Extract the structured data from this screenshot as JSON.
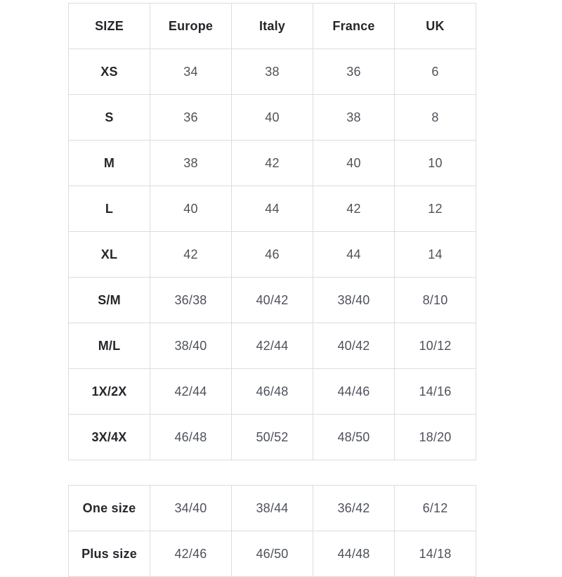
{
  "colors": {
    "background": "#ffffff",
    "table_border": "#dddddd",
    "header_text": "#26262b",
    "value_text": "#4e525a"
  },
  "size_table": {
    "columns": [
      "SIZE",
      "Europe",
      "Italy",
      "France",
      "UK"
    ],
    "rows": [
      {
        "size": "XS",
        "values": [
          "34",
          "38",
          "36",
          "6"
        ]
      },
      {
        "size": "S",
        "values": [
          "36",
          "40",
          "38",
          "8"
        ]
      },
      {
        "size": "M",
        "values": [
          "38",
          "42",
          "40",
          "10"
        ]
      },
      {
        "size": "L",
        "values": [
          "40",
          "44",
          "42",
          "12"
        ]
      },
      {
        "size": "XL",
        "values": [
          "42",
          "46",
          "44",
          "14"
        ]
      },
      {
        "size": "S/M",
        "values": [
          "36/38",
          "40/42",
          "38/40",
          "8/10"
        ]
      },
      {
        "size": "M/L",
        "values": [
          "38/40",
          "42/44",
          "40/42",
          "10/12"
        ]
      },
      {
        "size": "1X/2X",
        "values": [
          "42/44",
          "46/48",
          "44/46",
          "14/16"
        ]
      },
      {
        "size": "3X/4X",
        "values": [
          "46/48",
          "50/52",
          "48/50",
          "18/20"
        ]
      }
    ]
  },
  "special_table": {
    "rows": [
      {
        "size": "One size",
        "values": [
          "34/40",
          "38/44",
          "36/42",
          "6/12"
        ]
      },
      {
        "size": "Plus size",
        "values": [
          "42/46",
          "46/50",
          "44/48",
          "14/18"
        ]
      }
    ]
  }
}
